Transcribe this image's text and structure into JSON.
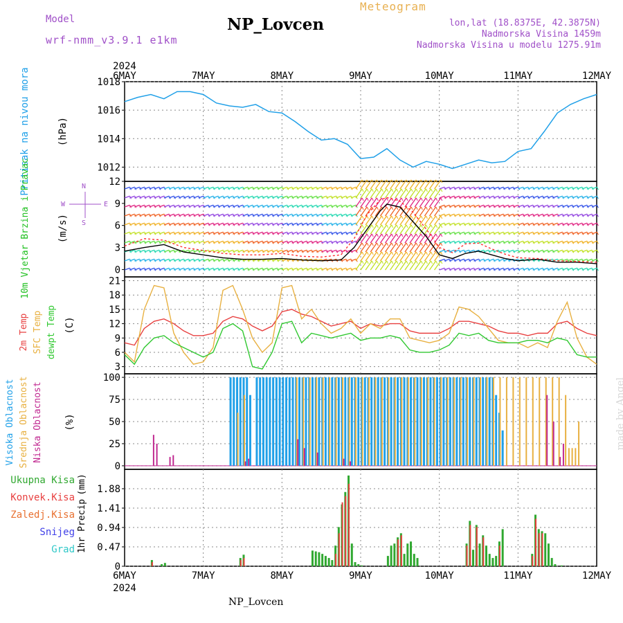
{
  "header": {
    "model_label": "Model",
    "model_name": "wrf-nmm_v3.9.1 e1km",
    "station": "NP_Lovcen",
    "meteogram": "Meteogram",
    "lonlat": "lon,lat (18.8375E, 42.3875N)",
    "altitude": "Nadmorska Visina 1459m",
    "altitude_model": "Nadmorska Visina u modelu 1275.91m",
    "signature": "made by Angel",
    "bottom_station": "NP_Lovcen"
  },
  "time_axis": {
    "labels": [
      "6MAY",
      "7MAY",
      "8MAY",
      "9MAY",
      "10MAY",
      "11MAY",
      "12MAY"
    ],
    "year": "2024"
  },
  "chart_data": [
    {
      "type": "line",
      "panel": "pressure",
      "ylabel": "Pritisak na nivou mora",
      "unit": "(hPa)",
      "ylim": [
        1011,
        1018
      ],
      "yticks": [
        "1012",
        "1014",
        "1016",
        "1018"
      ],
      "ytick_values": [
        1012,
        1014,
        1016,
        1018
      ],
      "series": [
        {
          "color": "#20a0e8",
          "x": [
            0,
            4,
            8,
            12,
            16,
            20,
            24,
            28,
            32,
            36,
            40,
            44,
            48,
            52,
            56,
            60,
            64,
            68,
            72,
            76,
            80,
            84,
            88,
            92,
            96,
            100,
            104,
            108,
            112,
            116,
            120,
            124,
            128,
            132,
            136,
            140,
            144
          ],
          "values": [
            1016.6,
            1016.9,
            1017.1,
            1016.8,
            1017.3,
            1017.3,
            1017.1,
            1016.5,
            1016.3,
            1016.2,
            1016.4,
            1015.9,
            1015.8,
            1015.2,
            1014.5,
            1013.9,
            1014.0,
            1013.6,
            1012.6,
            1012.7,
            1013.3,
            1012.5,
            1012.0,
            1012.4,
            1012.2,
            1011.9,
            1012.2,
            1012.5,
            1012.3,
            1012.4,
            1013.1,
            1013.3,
            1014.5,
            1015.8,
            1016.4,
            1016.8,
            1017.1
          ]
        }
      ]
    },
    {
      "type": "barbs",
      "panel": "wind",
      "ylabel": "10m Vjetar Brzina i Pravac",
      "unit": "(m/s)",
      "direction_legend": [
        "N",
        "W",
        "E",
        "S"
      ],
      "ylim": [
        -1,
        12
      ],
      "yticks": [
        "0",
        "3",
        "6",
        "9",
        "12"
      ],
      "ytick_values": [
        0,
        3,
        6,
        9,
        12
      ],
      "series": [
        {
          "name": "speed",
          "color": "#000000",
          "x": [
            0,
            6,
            12,
            18,
            24,
            30,
            36,
            42,
            48,
            54,
            60,
            66,
            70,
            74,
            78,
            80,
            84,
            88,
            92,
            96,
            100,
            104,
            108,
            112,
            116,
            120,
            126,
            132,
            138,
            144
          ],
          "values": [
            2.5,
            3.0,
            3.4,
            2.4,
            2.0,
            1.6,
            1.4,
            1.4,
            1.5,
            1.3,
            1.2,
            1.3,
            3.0,
            5.5,
            8.0,
            8.9,
            8.5,
            6.5,
            4.5,
            2.0,
            1.5,
            2.2,
            2.5,
            2.0,
            1.5,
            1.2,
            1.4,
            1.0,
            1.0,
            0.8
          ]
        },
        {
          "name": "gust",
          "color": "#ff3030",
          "x": [
            0,
            6,
            12,
            18,
            24,
            30,
            36,
            42,
            48,
            54,
            60,
            66,
            70,
            74,
            78,
            80,
            84,
            88,
            92,
            96,
            100,
            104,
            108,
            112,
            116,
            120,
            126,
            132,
            138,
            144
          ],
          "values": [
            3.2,
            4.2,
            4.0,
            3.0,
            2.6,
            2.2,
            2.0,
            2.0,
            2.2,
            1.8,
            1.7,
            2.0,
            4.2,
            7.5,
            9.5,
            9.8,
            9.3,
            7.8,
            5.5,
            3.0,
            2.3,
            3.5,
            3.6,
            2.8,
            2.1,
            1.6,
            1.5,
            1.2,
            1.1,
            1.0
          ]
        }
      ]
    },
    {
      "type": "line",
      "panel": "temperature",
      "ylabel": [
        "2m Temp",
        "SFC Temp",
        "dewpt Temp"
      ],
      "unit": "(C)",
      "ylim": [
        1.5,
        21.8
      ],
      "yticks": [
        "3",
        "6",
        "9",
        "12",
        "15",
        "18",
        "21"
      ],
      "ytick_values": [
        3,
        6,
        9,
        12,
        15,
        18,
        21
      ],
      "series": [
        {
          "name": "2m Temp",
          "color": "#e84040",
          "x": [
            0,
            3,
            6,
            9,
            12,
            15,
            18,
            21,
            24,
            27,
            30,
            33,
            36,
            39,
            42,
            45,
            48,
            51,
            54,
            57,
            60,
            63,
            66,
            69,
            72,
            75,
            78,
            81,
            84,
            87,
            90,
            93,
            96,
            99,
            102,
            105,
            108,
            111,
            114,
            117,
            120,
            123,
            126,
            129,
            132,
            135,
            138,
            141,
            144
          ],
          "values": [
            8,
            7.5,
            11,
            12.5,
            13,
            12,
            10.5,
            9.5,
            9.5,
            10,
            12.5,
            13.5,
            13,
            11.5,
            10.5,
            11.5,
            14.5,
            15,
            14,
            13.5,
            12.5,
            11.5,
            12,
            12.5,
            11,
            12,
            11.5,
            12,
            12,
            10.5,
            10,
            10,
            10,
            11,
            12.5,
            12.5,
            12,
            11.5,
            10.5,
            10,
            10,
            9.5,
            10,
            10,
            12,
            12.5,
            11,
            10,
            9.5
          ]
        },
        {
          "name": "SFC Temp",
          "color": "#e8b040",
          "x": [
            0,
            3,
            6,
            9,
            12,
            15,
            18,
            21,
            24,
            27,
            30,
            33,
            36,
            39,
            42,
            45,
            48,
            51,
            54,
            57,
            60,
            63,
            66,
            69,
            72,
            75,
            78,
            81,
            84,
            87,
            90,
            93,
            96,
            99,
            102,
            105,
            108,
            111,
            114,
            117,
            120,
            123,
            126,
            129,
            132,
            135,
            138,
            141,
            144
          ],
          "values": [
            6,
            4,
            15,
            20,
            19.5,
            10,
            6,
            3.5,
            4,
            7,
            19,
            20,
            15,
            9,
            6,
            8,
            19.5,
            20,
            13,
            15,
            12,
            10,
            11,
            13,
            10,
            12,
            11,
            13,
            13,
            9,
            8.5,
            8,
            8.5,
            10,
            15.5,
            15,
            13.5,
            11,
            8.5,
            8,
            8,
            7,
            8,
            7,
            12.5,
            16.5,
            9,
            5,
            3.5
          ]
        },
        {
          "name": "dewpt Temp",
          "color": "#30c830",
          "x": [
            0,
            3,
            6,
            9,
            12,
            15,
            18,
            21,
            24,
            27,
            30,
            33,
            36,
            39,
            42,
            45,
            48,
            51,
            54,
            57,
            60,
            63,
            66,
            69,
            72,
            75,
            78,
            81,
            84,
            87,
            90,
            93,
            96,
            99,
            102,
            105,
            108,
            111,
            114,
            117,
            120,
            123,
            126,
            129,
            132,
            135,
            138,
            141,
            144
          ],
          "values": [
            5.5,
            3.5,
            7,
            9,
            9.5,
            8,
            7,
            6,
            5,
            6,
            11,
            12,
            10.5,
            3,
            2.5,
            6,
            12,
            12.5,
            8,
            10,
            9.5,
            9,
            9.5,
            10,
            8.5,
            9,
            9,
            9.5,
            9,
            6.5,
            6,
            6,
            6.5,
            7.5,
            10,
            9.5,
            10,
            8.5,
            8,
            8,
            8,
            8.5,
            8.5,
            8,
            9,
            8.5,
            5.5,
            5,
            5
          ]
        }
      ]
    },
    {
      "type": "bar",
      "panel": "clouds",
      "ylabel": [
        "Visoka Oblacnost",
        "Srednja Oblacnost",
        "Niska Oblacnost"
      ],
      "unit": "(%)",
      "ylim": [
        -4,
        104
      ],
      "yticks": [
        "0",
        "25",
        "50",
        "75",
        "100"
      ],
      "ytick_values": [
        0,
        25,
        50,
        75,
        100
      ],
      "series": [
        {
          "name": "Visoka Oblacnost",
          "color": "#20a0e8",
          "x": [
            32,
            33,
            34,
            35,
            36,
            37,
            38,
            40,
            41,
            42,
            43,
            44,
            45,
            46,
            47,
            48,
            49,
            50,
            51,
            52,
            53,
            54,
            55,
            56,
            57,
            58,
            59,
            60,
            61,
            62,
            63,
            64,
            65,
            66,
            67,
            68,
            69,
            70,
            71,
            72,
            73,
            74,
            75,
            76,
            77,
            78,
            79,
            80,
            81,
            82,
            83,
            84,
            85,
            86,
            87,
            88,
            89,
            90,
            91,
            92,
            93,
            94,
            95,
            96,
            97,
            98,
            99,
            100,
            101,
            102,
            103,
            104,
            105,
            106,
            107,
            108,
            109,
            110,
            111,
            112,
            113,
            114,
            115
          ],
          "values": [
            100,
            100,
            100,
            100,
            100,
            100,
            80,
            100,
            100,
            100,
            100,
            100,
            100,
            100,
            100,
            100,
            100,
            100,
            100,
            100,
            100,
            100,
            100,
            100,
            100,
            100,
            100,
            100,
            100,
            100,
            100,
            100,
            100,
            100,
            100,
            100,
            100,
            100,
            100,
            100,
            100,
            100,
            100,
            100,
            100,
            100,
            100,
            100,
            100,
            100,
            100,
            100,
            100,
            100,
            100,
            100,
            100,
            100,
            100,
            100,
            100,
            100,
            100,
            100,
            100,
            100,
            100,
            100,
            100,
            100,
            100,
            100,
            100,
            100,
            100,
            100,
            100,
            100,
            100,
            100,
            80,
            60,
            40
          ]
        },
        {
          "name": "Srednja Oblacnost",
          "color": "#e8b040",
          "x": [
            34,
            36,
            52,
            54,
            56,
            58,
            60,
            62,
            64,
            66,
            68,
            70,
            72,
            74,
            76,
            78,
            80,
            82,
            84,
            86,
            88,
            90,
            92,
            94,
            96,
            98,
            100,
            102,
            104,
            106,
            108,
            110,
            112,
            114,
            116,
            118,
            120,
            122,
            124,
            126,
            128,
            130,
            132,
            134,
            135,
            136,
            137,
            138
          ],
          "values": [
            60,
            80,
            100,
            100,
            100,
            100,
            100,
            100,
            100,
            100,
            100,
            100,
            100,
            100,
            100,
            100,
            100,
            100,
            100,
            100,
            100,
            100,
            100,
            100,
            100,
            100,
            100,
            100,
            100,
            100,
            100,
            100,
            100,
            100,
            100,
            100,
            100,
            100,
            100,
            100,
            100,
            100,
            100,
            80,
            20,
            20,
            20,
            50
          ]
        },
        {
          "name": "Niska Oblacnost",
          "color": "#c02890",
          "x": [
            8,
            9,
            13,
            14,
            36,
            37,
            52,
            54,
            58,
            66,
            68,
            128,
            130,
            132,
            133
          ],
          "values": [
            35,
            25,
            10,
            12,
            5,
            8,
            30,
            20,
            15,
            8,
            5,
            80,
            50,
            10,
            25
          ]
        }
      ]
    },
    {
      "type": "bar",
      "panel": "precip",
      "ylabel": "1hr Precip",
      "unit": "(mm)",
      "legend": [
        "Ukupna Kisa",
        "Konvek.Kisa",
        "Zaledj.Kisa",
        "Snijeg",
        "Grad"
      ],
      "legend_colors": [
        "#30a830",
        "#e84040",
        "#e87030",
        "#4040e8",
        "#30c8c8"
      ],
      "ylim": [
        0,
        2.35
      ],
      "yticks": [
        "0",
        "0.47",
        "0.94",
        "1.41",
        "1.88"
      ],
      "ytick_values": [
        0,
        0.47,
        0.94,
        1.41,
        1.88
      ],
      "series": [
        {
          "name": "Ukupna Kisa",
          "color": "#30a830",
          "x": [
            8,
            11,
            12,
            35,
            36,
            57,
            58,
            59,
            60,
            61,
            62,
            63,
            64,
            65,
            66,
            67,
            68,
            69,
            70,
            71,
            72,
            80,
            81,
            82,
            83,
            84,
            85,
            86,
            87,
            88,
            89,
            104,
            105,
            106,
            107,
            108,
            109,
            110,
            111,
            112,
            113,
            114,
            115,
            124,
            125,
            126,
            127,
            128,
            129,
            130,
            131,
            133
          ],
          "values": [
            0.15,
            0.05,
            0.08,
            0.2,
            0.28,
            0.38,
            0.36,
            0.34,
            0.3,
            0.25,
            0.2,
            0.15,
            0.5,
            0.95,
            1.5,
            1.8,
            2.2,
            0.55,
            0.1,
            0.05,
            0.02,
            0.25,
            0.5,
            0.55,
            0.7,
            0.8,
            0.3,
            0.55,
            0.6,
            0.3,
            0.2,
            0.55,
            1.1,
            0.4,
            1.0,
            0.55,
            0.75,
            0.5,
            0.3,
            0.2,
            0.25,
            0.6,
            0.9,
            0.3,
            1.25,
            0.9,
            0.85,
            0.8,
            0.55,
            0.2,
            0.05,
            0.02
          ]
        },
        {
          "name": "Konvek.Kisa",
          "color": "#e84040",
          "x": [
            8,
            35,
            36,
            64,
            65,
            66,
            67,
            68,
            83,
            84,
            104,
            105,
            107,
            109,
            114,
            124,
            125,
            126,
            127
          ],
          "values": [
            0.1,
            0.15,
            0.2,
            0.3,
            0.8,
            1.55,
            1.7,
            2.0,
            0.65,
            0.75,
            0.5,
            1.0,
            0.95,
            0.7,
            0.5,
            0.25,
            1.15,
            0.8,
            0.8
          ]
        }
      ]
    }
  ]
}
